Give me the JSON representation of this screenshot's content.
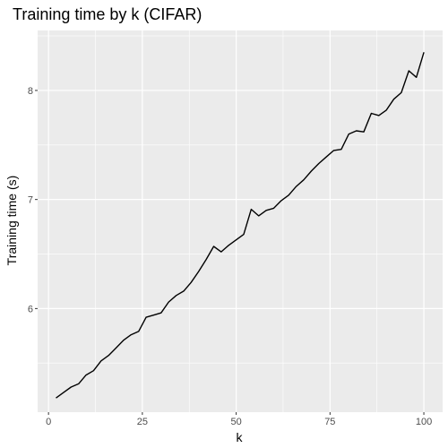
{
  "chart_data": {
    "type": "line",
    "title": "Training time by k (CIFAR)",
    "xlabel": "k",
    "ylabel": "Training time (s)",
    "xlim": [
      -2.9,
      105.0
    ],
    "ylim": [
      5.05,
      8.55
    ],
    "x_ticks": [
      0,
      25,
      50,
      75,
      100
    ],
    "y_ticks": [
      6,
      7,
      8
    ],
    "grid": true,
    "panel_background": "#ebebeb",
    "grid_color": "#ffffff",
    "line_color": "#000000",
    "series": [
      {
        "x": [
          2,
          4,
          6,
          8,
          10,
          12,
          14,
          16,
          18,
          20,
          22,
          24,
          26,
          28,
          30,
          32,
          34,
          36,
          38,
          40,
          42,
          44,
          46,
          48,
          50,
          52,
          54,
          56,
          58,
          60,
          62,
          64,
          66,
          68,
          70,
          72,
          74,
          76,
          78,
          80,
          82,
          84,
          86,
          88,
          90,
          92,
          94,
          96,
          98,
          100
        ],
        "values": [
          5.18,
          5.23,
          5.28,
          5.31,
          5.39,
          5.43,
          5.52,
          5.57,
          5.64,
          5.71,
          5.76,
          5.79,
          5.92,
          5.94,
          5.96,
          6.06,
          6.12,
          6.16,
          6.24,
          6.34,
          6.45,
          6.57,
          6.52,
          6.58,
          6.63,
          6.68,
          6.91,
          6.85,
          6.9,
          6.92,
          6.99,
          7.04,
          7.12,
          7.18,
          7.26,
          7.33,
          7.39,
          7.45,
          7.46,
          7.6,
          7.63,
          7.62,
          7.79,
          7.77,
          7.82,
          7.92,
          7.98,
          8.18,
          8.12,
          8.35
        ]
      }
    ]
  }
}
